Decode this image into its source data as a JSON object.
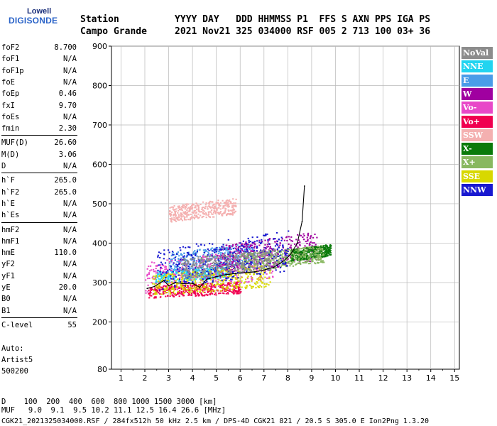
{
  "logo": {
    "line1": "Lowell",
    "line2": "DIGISONDE"
  },
  "header": {
    "line1": "Station          YYYY DAY   DDD HHMMSS P1  FFS S AXN PPS IGA PS",
    "line2": "Campo Grande     2021 Nov21 325 034000 RSF 005 2 713 100 03+ 36"
  },
  "params_group1": [
    {
      "label": "foF2",
      "value": "8.700"
    },
    {
      "label": "foF1",
      "value": "N/A"
    },
    {
      "label": "foF1p",
      "value": "N/A"
    },
    {
      "label": "foE",
      "value": "N/A"
    },
    {
      "label": "foEp",
      "value": "0.46"
    },
    {
      "label": "fxI",
      "value": "9.70"
    },
    {
      "label": "foEs",
      "value": "N/A"
    },
    {
      "label": "fmin",
      "value": "2.30"
    }
  ],
  "params_group2": [
    {
      "label": "MUF(D)",
      "value": "26.60"
    },
    {
      "label": "M(D)",
      "value": "3.06"
    },
    {
      "label": "D",
      "value": "N/A"
    }
  ],
  "params_group3": [
    {
      "label": "h`F",
      "value": "265.0"
    },
    {
      "label": "h`F2",
      "value": "265.0"
    },
    {
      "label": "h`E",
      "value": "N/A"
    },
    {
      "label": "h`Es",
      "value": "N/A"
    }
  ],
  "params_group4": [
    {
      "label": "hmF2",
      "value": "N/A"
    },
    {
      "label": "hmF1",
      "value": "N/A"
    },
    {
      "label": "hmE",
      "value": "110.0"
    },
    {
      "label": "yF2",
      "value": "N/A"
    },
    {
      "label": "yF1",
      "value": "N/A"
    },
    {
      "label": "yE",
      "value": "20.0"
    },
    {
      "label": "B0",
      "value": "N/A"
    },
    {
      "label": "B1",
      "value": "N/A"
    }
  ],
  "params_group5": [
    {
      "label": "C-level",
      "value": "55"
    }
  ],
  "autoscaling": {
    "line1": "Auto:",
    "line2": "Artist5",
    "line3": "500200"
  },
  "legend": [
    {
      "label": "NoVal",
      "color": "#8c8c8c"
    },
    {
      "label": "NNE",
      "color": "#22d4f0"
    },
    {
      "label": "E",
      "color": "#4a9ce8"
    },
    {
      "label": "W",
      "color": "#a000a0"
    },
    {
      "label": "Vo-",
      "color": "#e848c8"
    },
    {
      "label": "Vo+",
      "color": "#f00050"
    },
    {
      "label": "SSW",
      "color": "#f4b0b0"
    },
    {
      "label": "X-",
      "color": "#0a7a0a"
    },
    {
      "label": "X+",
      "color": "#88b860"
    },
    {
      "label": "SSE",
      "color": "#d8d800"
    },
    {
      "label": "NNW",
      "color": "#1818d0"
    }
  ],
  "footer": {
    "line1": "D    100  200  400  600  800 1000 1500 3000 [km]",
    "line2": "MUF   9.0  9.1  9.5 10.2 11.1 12.5 16.4 26.6 [MHz]",
    "line3": "CGK21_2021325034000.RSF / 284fx512h 50 kHz 2.5 km / DPS-4D CGK21 821 / 20.5 S 305.0 E Ion2Png 1.3.20"
  },
  "chart_data": {
    "type": "scatter",
    "x_ticks": [
      1,
      2,
      3,
      4,
      5,
      6,
      7,
      8,
      9,
      10,
      11,
      12,
      13,
      14,
      15
    ],
    "y_ticks": [
      80,
      200,
      300,
      400,
      500,
      600,
      700,
      800,
      900
    ],
    "xlim": [
      0.6,
      15.2
    ],
    "ylim": [
      80,
      900
    ],
    "grid": true,
    "trace": {
      "name": "profile",
      "color": "#000000",
      "x": [
        2.1,
        2.4,
        2.8,
        3.0,
        3.3,
        3.6,
        4.0,
        4.3,
        4.6,
        5.0,
        5.4,
        5.8,
        6.2,
        6.6,
        7.0,
        7.4,
        7.8,
        8.1,
        8.4,
        8.6,
        8.7
      ],
      "y": [
        285,
        290,
        305,
        292,
        300,
        297,
        298,
        288,
        308,
        315,
        320,
        323,
        325,
        327,
        332,
        338,
        354,
        370,
        400,
        455,
        545
      ]
    },
    "clusters": [
      {
        "series": "E",
        "x": [
          3.0,
          6.6
        ],
        "y": [
          325,
          395
        ]
      },
      {
        "series": "NNE",
        "x": [
          2.4,
          5.5
        ],
        "y": [
          300,
          340
        ]
      },
      {
        "series": "Vo-",
        "x": [
          2.0,
          7.4
        ],
        "y": [
          270,
          380
        ]
      },
      {
        "series": "Vo+",
        "x": [
          2.1,
          6.0
        ],
        "y": [
          260,
          300
        ]
      },
      {
        "series": "W",
        "x": [
          5.0,
          9.2
        ],
        "y": [
          320,
          420
        ]
      },
      {
        "series": "SSW",
        "x": [
          3.0,
          5.8
        ],
        "y": [
          455,
          510
        ]
      },
      {
        "series": "X-",
        "x": [
          8.1,
          9.8
        ],
        "y": [
          355,
          395
        ]
      },
      {
        "series": "X+",
        "x": [
          6.0,
          9.5
        ],
        "y": [
          330,
          390
        ]
      },
      {
        "series": "SSE",
        "x": [
          2.3,
          7.3
        ],
        "y": [
          265,
          340
        ]
      },
      {
        "series": "NNW",
        "x": [
          2.5,
          8.0
        ],
        "y": [
          280,
          420
        ]
      },
      {
        "series": "NoVal",
        "x": [
          3.5,
          7.5
        ],
        "y": [
          310,
          380
        ]
      }
    ]
  }
}
